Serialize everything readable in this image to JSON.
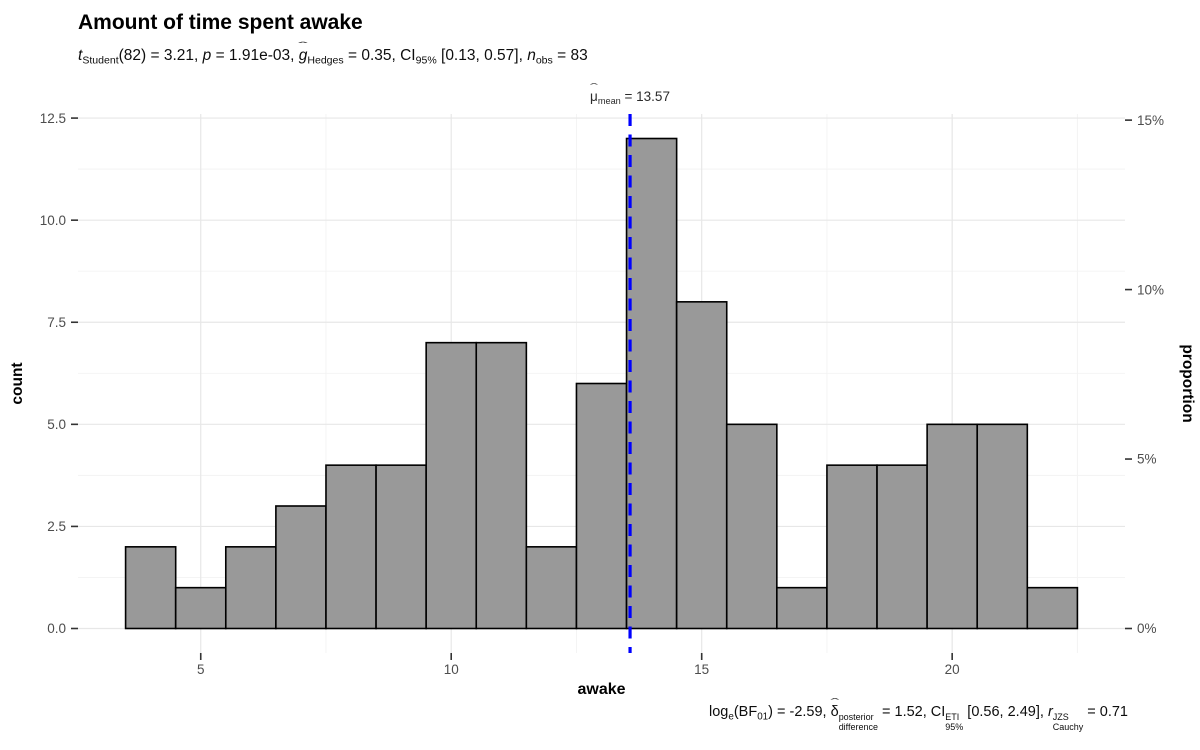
{
  "header": {
    "title": "Amount of time spent awake",
    "subtitle_text": "t Student(82) = 3.21, p = 1.91e-03, g-hat Hedges = 0.35, CI 95% [0.13, 0.57], n obs = 83",
    "subtitle_parts": [
      {
        "t": "t",
        "i": 1
      },
      {
        "sub": "Student"
      },
      {
        "t": "(82) = 3.21, "
      },
      {
        "t": "p",
        "i": 1
      },
      {
        "t": " = 1.91e-03, "
      },
      {
        "t": "g",
        "i": 1,
        "hat": 1
      },
      {
        "sub": "Hedges"
      },
      {
        "t": " = 0.35, CI"
      },
      {
        "sub": "95%"
      },
      {
        "t": " [0.13, 0.57], "
      },
      {
        "t": "n",
        "i": 1
      },
      {
        "sub": "obs"
      },
      {
        "t": " = 83"
      }
    ]
  },
  "annotation": {
    "mean_label_text": "mu-hat mean = 13.57",
    "mean_label_parts": [
      {
        "t": "μ",
        "hat": 1
      },
      {
        "sub": "mean"
      },
      {
        "t": " = 13.57"
      }
    ]
  },
  "footer": {
    "caption_text": "log e(BF01) = -2.59, delta-hat difference^posterior = 1.52, CI 95%^ETI [0.56, 2.49], r Cauchy^JZS = 0.71",
    "caption_parts": [
      {
        "t": "log"
      },
      {
        "sub": "e"
      },
      {
        "t": "(BF"
      },
      {
        "sub": "01"
      },
      {
        "t": ") = -2.59, "
      },
      {
        "t": "δ",
        "hat": 1
      },
      {
        "sup": "posterior",
        "sub": "difference"
      },
      {
        "t": " = 1.52, CI"
      },
      {
        "sup": "ETI",
        "sub": "95%"
      },
      {
        "t": " [0.56, 2.49], "
      },
      {
        "t": "r",
        "i": 1
      },
      {
        "sup": "JZS",
        "sub": "Cauchy"
      },
      {
        "t": " = 0.71"
      }
    ]
  },
  "chart_data": {
    "type": "bar",
    "subtype": "histogram",
    "title": "Amount of time spent awake",
    "xlabel": "awake",
    "ylabel_left": "count",
    "ylabel_right": "proportion",
    "n_obs": 83,
    "bin_width": 1,
    "bin_edges": [
      3.5,
      4.5,
      5.5,
      6.5,
      7.5,
      8.5,
      9.5,
      10.5,
      11.5,
      12.5,
      13.5,
      14.5,
      15.5,
      16.5,
      17.5,
      18.5,
      19.5,
      20.5,
      21.5,
      22.5
    ],
    "counts": [
      2,
      1,
      2,
      3,
      4,
      4,
      7,
      7,
      2,
      6,
      12,
      8,
      5,
      1,
      4,
      4,
      5,
      5,
      1
    ],
    "mean_line": {
      "x": 13.57,
      "label": "13.57",
      "color": "#0000FF",
      "style": "dashed"
    },
    "xlim": [
      2.55,
      23.45
    ],
    "ylim_count": [
      -0.6,
      12.6
    ],
    "x_ticks": [
      {
        "v": 5,
        "label": "5"
      },
      {
        "v": 10,
        "label": "10"
      },
      {
        "v": 15,
        "label": "15"
      },
      {
        "v": 20,
        "label": "20"
      }
    ],
    "y_ticks_left": [
      {
        "v": 0,
        "label": "0.0"
      },
      {
        "v": 2.5,
        "label": "2.5"
      },
      {
        "v": 5,
        "label": "5.0"
      },
      {
        "v": 7.5,
        "label": "7.5"
      },
      {
        "v": 10,
        "label": "10.0"
      },
      {
        "v": 12.5,
        "label": "12.5"
      }
    ],
    "y_ticks_right": [
      {
        "pct": 0,
        "label": "0%"
      },
      {
        "pct": 5,
        "label": "5%"
      },
      {
        "pct": 10,
        "label": "10%"
      },
      {
        "pct": 15,
        "label": "15%"
      }
    ],
    "x_minor": [
      7.5,
      12.5,
      17.5,
      22.5
    ],
    "y_minor": [
      1.25,
      3.75,
      6.25,
      8.75,
      11.25
    ],
    "grid": true,
    "legend": "none",
    "colors": {
      "bar_fill": "#999999",
      "bar_stroke": "#000000",
      "grid_major": "#E7E7E7",
      "grid_minor": "#F3F3F3",
      "tick_mark": "#333333",
      "tick_label": "#4D4D4D",
      "axis_title": "#000000",
      "mean_line": "#0000FF",
      "background": "#FFFFFF"
    }
  }
}
